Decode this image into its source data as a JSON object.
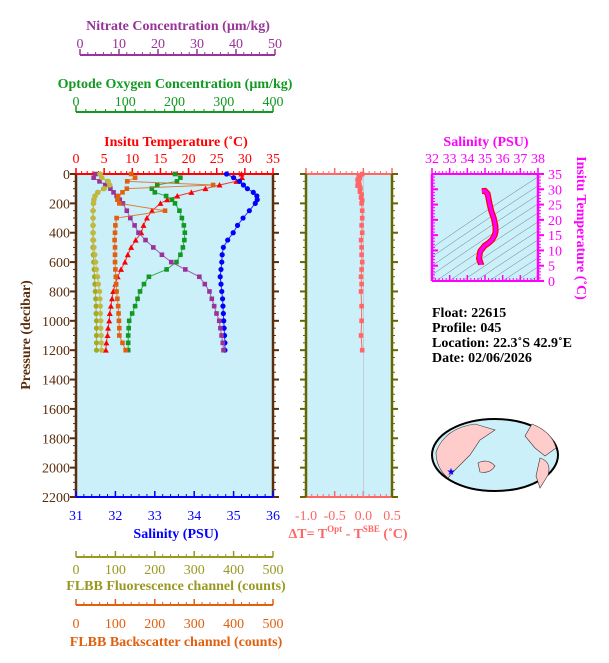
{
  "chart_data": [
    {
      "type": "line",
      "pressure_axis": {
        "label": "Pressure (decibar)",
        "min": 0,
        "max": 2200,
        "major": 200,
        "minor": 50,
        "inverted": true,
        "color": "#5a2d0c"
      },
      "axes": {
        "nitrate": {
          "label": "Nitrate Concentration (µm/kg)",
          "min": 0,
          "max": 50,
          "major": 10,
          "minor": 2,
          "decimals": 0,
          "color": "#993399"
        },
        "oxygen": {
          "label": "Optode Oxygen Concentration (µm/kg)",
          "min": 0,
          "max": 400,
          "major": 100,
          "minor": 20,
          "decimals": 0,
          "color": "#119922"
        },
        "temperature": {
          "label": "Insitu Temperature (˚C)",
          "min": 0,
          "max": 35,
          "major": 5,
          "minor": 1,
          "decimals": 0,
          "color": "#ff0000"
        },
        "salinity": {
          "label": "Salinity (PSU)",
          "min": 31,
          "max": 36,
          "major": 1,
          "minor": 0.2,
          "decimals": 0,
          "color": "#0000ff"
        },
        "fluorescence": {
          "label": "FLBB Fluorescence channel (counts)",
          "min": 0,
          "max": 500,
          "major": 100,
          "minor": 20,
          "decimals": 0,
          "color": "#999922"
        },
        "backscatter": {
          "label": "FLBB Backscatter channel (counts)",
          "min": 0,
          "max": 500,
          "major": 100,
          "minor": 20,
          "decimals": 0,
          "color": "#e06010"
        }
      },
      "pressure": [
        0,
        25,
        50,
        75,
        100,
        125,
        150,
        175,
        200,
        250,
        300,
        350,
        400,
        450,
        500,
        550,
        600,
        650,
        700,
        750,
        800,
        850,
        900,
        950,
        1000,
        1050,
        1100,
        1150,
        1200
      ],
      "series": [
        {
          "axis": "temperature",
          "marker": "triangle",
          "color": "#ff0000",
          "values": [
            29.4,
            29.5,
            28.5,
            25.5,
            23.0,
            20.5,
            18.0,
            16.2,
            15.0,
            13.5,
            12.6,
            12.0,
            11.6,
            10.6,
            9.8,
            9.2,
            8.7,
            8.0,
            7.4,
            7.0,
            6.6,
            6.4,
            6.2,
            6.0,
            5.9,
            5.7,
            5.6,
            5.4,
            5.3
          ]
        },
        {
          "axis": "salinity",
          "marker": "circle",
          "color": "#0000ff",
          "values": [
            34.82,
            35.0,
            35.15,
            35.25,
            35.35,
            35.5,
            35.59,
            35.6,
            35.55,
            35.4,
            35.24,
            35.1,
            34.99,
            34.85,
            34.74,
            34.71,
            34.7,
            34.68,
            34.66,
            34.68,
            34.7,
            34.72,
            34.73,
            34.74,
            34.75,
            34.76,
            34.77,
            34.78,
            34.78
          ]
        },
        {
          "axis": "oxygen",
          "marker": "square",
          "color": "#119922",
          "values": [
            201,
            212,
            205,
            165,
            154,
            160,
            183,
            195,
            201,
            210,
            215,
            219,
            221,
            220,
            217,
            212,
            204,
            184,
            148,
            138,
            130,
            125,
            120,
            114,
            108,
            107,
            106,
            106,
            106
          ]
        },
        {
          "axis": "nitrate",
          "marker": "square",
          "color": "#993399",
          "values": [
            4.0,
            3.5,
            5.0,
            6.5,
            7.8,
            8.6,
            9.4,
            10.2,
            11.0,
            12.0,
            12.9,
            14.0,
            15.0,
            16.8,
            18.8,
            21.0,
            23.4,
            27.0,
            30.6,
            32.0,
            33.2,
            33.8,
            34.4,
            35.0,
            35.7,
            36.0,
            36.3,
            36.6,
            36.8
          ]
        },
        {
          "axis": "fluorescence",
          "marker": "circle",
          "color": "#a8a820",
          "values": [
            60,
            65,
            80,
            85,
            70,
            55,
            48,
            45,
            44,
            43,
            43,
            43,
            43,
            43,
            43,
            44,
            45,
            46,
            47,
            48,
            49,
            50,
            51,
            51,
            52,
            52,
            52,
            52,
            52
          ]
        },
        {
          "axis": "fluorescence",
          "marker": "circle",
          "color": "#c2b840",
          "values": [
            62,
            66,
            82,
            86,
            72,
            56,
            49,
            46,
            45,
            44,
            44,
            44,
            44,
            45,
            46,
            48,
            50,
            52,
            55,
            57,
            60,
            61,
            62,
            62,
            63,
            63,
            64,
            64,
            65
          ]
        },
        {
          "axis": "backscatter",
          "marker": "square",
          "color": "#e06010",
          "values": [
            140,
            150,
            130,
            348,
            129,
            118,
            107,
            105,
            110,
            226,
            103,
            100,
            99,
            98,
            99,
            99,
            99,
            100,
            101,
            102,
            103,
            105,
            107,
            108,
            109,
            110,
            110,
            118,
            126
          ]
        }
      ]
    },
    {
      "type": "line",
      "xlabel": "ΔT= T",
      "xlabel_sup1": "Opt",
      "xlabel_mid": " - T",
      "xlabel_sup2": "SBE",
      "xlabel_end": " (˚C)",
      "axis": {
        "min": -1.0,
        "max": 0.5,
        "major": 0.5,
        "minor": 0.1,
        "decimals": 1,
        "color": "#ff6666"
      },
      "ylim": [
        0,
        2200
      ],
      "pressure": [
        0,
        10,
        20,
        30,
        40,
        50,
        60,
        70,
        80,
        90,
        100,
        120,
        140,
        160,
        180,
        200,
        250,
        300,
        350,
        400,
        450,
        500,
        550,
        600,
        650,
        700,
        750,
        800,
        900,
        1000,
        1100,
        1200
      ],
      "values": [
        -0.02,
        -0.05,
        -0.08,
        -0.06,
        -0.1,
        -0.08,
        -0.09,
        -0.07,
        -0.1,
        -0.06,
        -0.05,
        -0.06,
        -0.03,
        -0.04,
        -0.02,
        -0.03,
        -0.02,
        -0.02,
        -0.03,
        -0.02,
        -0.04,
        -0.03,
        -0.03,
        -0.02,
        -0.03,
        -0.04,
        -0.03,
        -0.04,
        -0.03,
        -0.03,
        -0.04,
        -0.02
      ],
      "color": "#ff6666"
    },
    {
      "type": "scatter",
      "xaxis": {
        "label": "Salinity (PSU)",
        "min": 32,
        "max": 38,
        "major": 1,
        "minor": 0.2,
        "decimals": 0
      },
      "yaxis": {
        "label": "Insitu Temperature (˚C)",
        "min": 0,
        "max": 35,
        "major": 5,
        "minor": 1,
        "decimals": 0
      },
      "color": "#ff00ff",
      "line_color": "#ff0000",
      "background_contours": true
    }
  ],
  "info": {
    "float": "Float:  22615",
    "profile": "Profile:  045",
    "location": "Location:  22.3˚S  42.9˚E",
    "date": "Date:  02/06/2026"
  },
  "map": {
    "location_marker": "blue-star",
    "ocean_color": "#ccf0fa",
    "land_color": "#ffcccc"
  },
  "colors": {
    "plot_bg": "#ccf0fa",
    "frame": "#5a2d0c",
    "delta_frame": "#666600"
  }
}
